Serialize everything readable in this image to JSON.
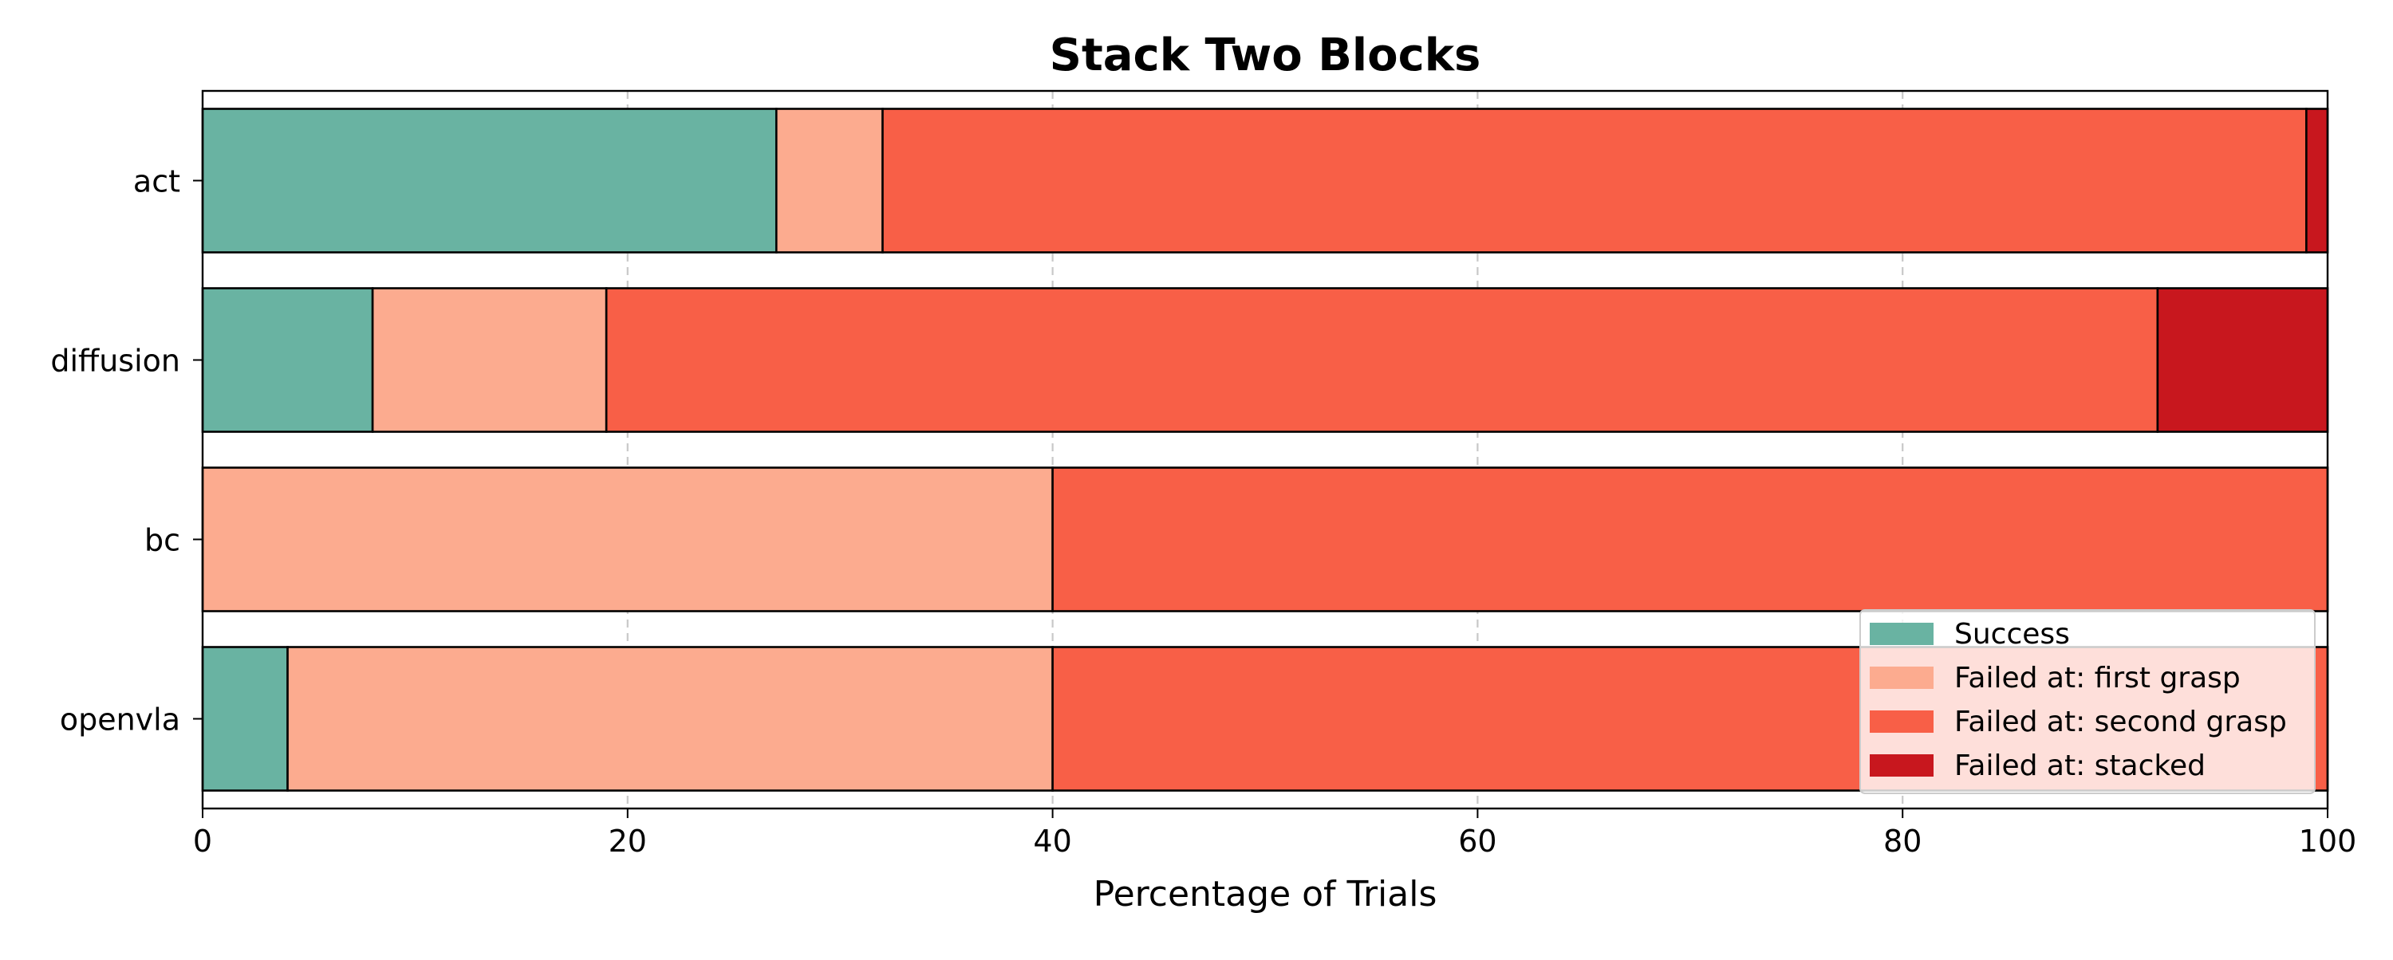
{
  "chart_data": {
    "type": "bar",
    "orientation": "horizontal",
    "stacked": true,
    "title": "Stack Two Blocks",
    "xlabel": "Percentage of Trials",
    "ylabel": "",
    "xlim": [
      0,
      100
    ],
    "xticks": [
      0,
      20,
      40,
      60,
      80,
      100
    ],
    "grid": "x dashed",
    "legend_position": "lower-right",
    "categories": [
      "act",
      "diffusion",
      "bc",
      "openvla"
    ],
    "series": [
      {
        "name": "Success",
        "color": "#69b3a2",
        "values": [
          27,
          8,
          0,
          4
        ]
      },
      {
        "name": "Failed at: first grasp",
        "color": "#fcab8f",
        "values": [
          5,
          11,
          40,
          36
        ]
      },
      {
        "name": "Failed at: second grasp",
        "color": "#f85f47",
        "values": [
          67,
          73,
          60,
          60
        ]
      },
      {
        "name": "Failed at: stacked",
        "color": "#c8171e",
        "values": [
          1,
          8,
          0,
          0
        ]
      }
    ]
  }
}
